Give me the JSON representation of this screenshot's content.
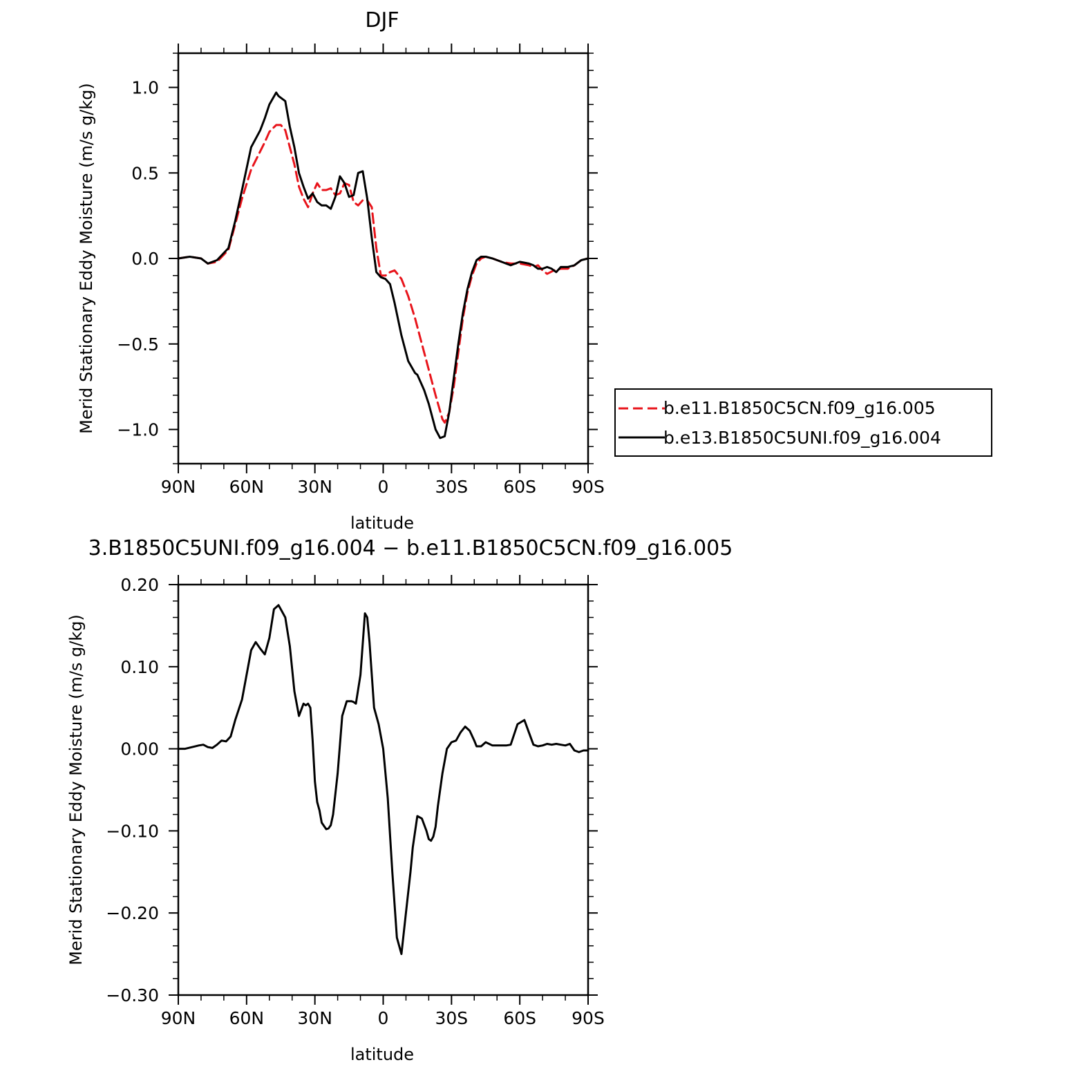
{
  "chart_data": [
    {
      "type": "line",
      "title": "DJF",
      "xlabel": "latitude",
      "ylabel": "Merid Stationary Eddy Moisture (m/s g/kg)",
      "xlim": [
        90,
        -90
      ],
      "ylim": [
        -1.2,
        1.2
      ],
      "x_ticks": [
        90,
        60,
        30,
        0,
        -30,
        -60,
        -90
      ],
      "x_tick_labels": [
        "90N",
        "60N",
        "30N",
        "0",
        "30S",
        "60S",
        "90S"
      ],
      "y_ticks": [
        1.0,
        0.5,
        0.0,
        -0.5,
        -1.0
      ],
      "y_tick_labels": [
        "1.0",
        "0.5",
        "0.0",
        "−0.5",
        "−1.0"
      ],
      "legend_position": "right",
      "series": [
        {
          "name": "b.e11.B1850C5CN.f09_g16.005",
          "color": "#e8141b",
          "dash": "dashed",
          "x": [
            90,
            85,
            80,
            77,
            73,
            68,
            65,
            62,
            58,
            55,
            52,
            50,
            47,
            45,
            43,
            41,
            39,
            37,
            35,
            33,
            31,
            29,
            27,
            25,
            23,
            21,
            19,
            17,
            15,
            13,
            11,
            9,
            7,
            5,
            3,
            1,
            -1,
            -3,
            -5,
            -8,
            -11,
            -14,
            -17,
            -20,
            -23,
            -26,
            -27,
            -29,
            -31,
            -33,
            -35,
            -37,
            -39,
            -41,
            -43,
            -45,
            -48,
            -52,
            -56,
            -60,
            -64,
            -66,
            -68,
            -70,
            -72,
            -75,
            -78,
            -81,
            -84,
            -87,
            -90
          ],
          "values": [
            0.0,
            0.01,
            0.0,
            -0.03,
            -0.02,
            0.05,
            0.2,
            0.35,
            0.52,
            0.6,
            0.68,
            0.74,
            0.78,
            0.78,
            0.75,
            0.65,
            0.55,
            0.42,
            0.35,
            0.3,
            0.38,
            0.44,
            0.4,
            0.4,
            0.41,
            0.37,
            0.38,
            0.44,
            0.43,
            0.33,
            0.31,
            0.34,
            0.34,
            0.3,
            0.06,
            -0.1,
            -0.1,
            -0.08,
            -0.07,
            -0.12,
            -0.22,
            -0.35,
            -0.5,
            -0.65,
            -0.8,
            -0.94,
            -0.96,
            -0.9,
            -0.75,
            -0.55,
            -0.35,
            -0.2,
            -0.1,
            -0.03,
            0.0,
            0.01,
            0.0,
            -0.02,
            -0.03,
            -0.03,
            -0.04,
            -0.05,
            -0.04,
            -0.07,
            -0.09,
            -0.07,
            -0.06,
            -0.06,
            -0.04,
            -0.01,
            0.0
          ]
        },
        {
          "name": "b.e13.B1850C5UNI.f09_g16.004",
          "color": "#000000",
          "dash": "solid",
          "x": [
            90,
            85,
            80,
            77,
            73,
            68,
            65,
            62,
            58,
            56,
            54,
            52,
            50,
            47,
            46,
            45,
            43,
            41,
            39,
            37,
            35,
            33,
            31,
            29,
            27,
            25,
            23,
            21,
            19,
            17,
            15,
            13,
            11,
            9,
            7,
            5,
            3,
            1,
            -1,
            -3,
            -5,
            -8,
            -11,
            -14,
            -15,
            -17,
            -18,
            -20,
            -23,
            -25,
            -27,
            -29,
            -31,
            -33,
            -35,
            -37,
            -39,
            -41,
            -43,
            -45,
            -48,
            -52,
            -56,
            -60,
            -64,
            -66,
            -68,
            -70,
            -72,
            -74,
            -76,
            -78,
            -81,
            -84,
            -87,
            -90
          ],
          "values": [
            0.0,
            0.01,
            0.0,
            -0.03,
            -0.01,
            0.06,
            0.22,
            0.4,
            0.65,
            0.7,
            0.75,
            0.82,
            0.9,
            0.97,
            0.95,
            0.94,
            0.92,
            0.77,
            0.65,
            0.5,
            0.42,
            0.35,
            0.38,
            0.33,
            0.31,
            0.31,
            0.29,
            0.36,
            0.48,
            0.44,
            0.36,
            0.37,
            0.5,
            0.51,
            0.35,
            0.12,
            -0.08,
            -0.11,
            -0.12,
            -0.15,
            -0.26,
            -0.45,
            -0.6,
            -0.67,
            -0.68,
            -0.74,
            -0.77,
            -0.85,
            -1.0,
            -1.05,
            -1.04,
            -0.9,
            -0.7,
            -0.5,
            -0.32,
            -0.18,
            -0.08,
            -0.01,
            0.01,
            0.01,
            0.0,
            -0.02,
            -0.04,
            -0.02,
            -0.03,
            -0.04,
            -0.06,
            -0.06,
            -0.05,
            -0.06,
            -0.08,
            -0.05,
            -0.05,
            -0.04,
            -0.01,
            0.0
          ]
        }
      ]
    },
    {
      "type": "line",
      "title": "3.B1850C5UNI.f09_g16.004 − b.e11.B1850C5CN.f09_g16.005",
      "xlabel": "latitude",
      "ylabel": "Merid Stationary Eddy Moisture (m/s g/kg)",
      "xlim": [
        90,
        -90
      ],
      "ylim": [
        -0.3,
        0.2
      ],
      "x_ticks": [
        90,
        60,
        30,
        0,
        -30,
        -60,
        -90
      ],
      "x_tick_labels": [
        "90N",
        "60N",
        "30N",
        "0",
        "30S",
        "60S",
        "90S"
      ],
      "y_ticks": [
        0.2,
        0.1,
        0.0,
        -0.1,
        -0.2,
        -0.3
      ],
      "y_tick_labels": [
        "0.20",
        "0.10",
        "0.00",
        "−0.10",
        "−0.20",
        "−0.30"
      ],
      "series": [
        {
          "color": "#000000",
          "dash": "solid",
          "x": [
            90,
            87,
            84,
            81,
            79,
            77,
            75,
            73,
            71,
            69,
            67,
            65,
            62,
            60,
            58,
            56,
            54,
            52,
            50,
            48,
            46,
            45,
            43,
            41,
            39,
            37,
            35,
            34,
            33,
            32,
            31,
            30,
            29,
            28,
            27,
            25,
            24,
            23,
            22,
            20,
            18,
            16,
            14,
            13,
            12,
            10,
            8,
            7,
            6,
            5,
            4,
            2,
            0,
            -2,
            -4,
            -6,
            -8,
            -10,
            -12,
            -13,
            -15,
            -17,
            -19,
            -20,
            -21,
            -22,
            -23,
            -24,
            -26,
            -28,
            -30,
            -32,
            -34,
            -36,
            -38,
            -40,
            -41,
            -43,
            -45,
            -48,
            -50,
            -52,
            -54,
            -56,
            -59,
            -62,
            -64,
            -66,
            -68,
            -70,
            -72,
            -74,
            -76,
            -78,
            -80,
            -82,
            -84,
            -86,
            -88,
            -90
          ],
          "values": [
            0.0,
            0.0,
            0.002,
            0.004,
            0.005,
            0.002,
            0.001,
            0.005,
            0.01,
            0.009,
            0.015,
            0.035,
            0.06,
            0.09,
            0.12,
            0.13,
            0.122,
            0.115,
            0.135,
            0.17,
            0.175,
            0.17,
            0.16,
            0.125,
            0.07,
            0.04,
            0.055,
            0.053,
            0.055,
            0.05,
            0.01,
            -0.04,
            -0.065,
            -0.075,
            -0.09,
            -0.098,
            -0.097,
            -0.093,
            -0.08,
            -0.03,
            0.04,
            0.058,
            0.058,
            0.057,
            0.055,
            0.09,
            0.165,
            0.16,
            0.13,
            0.09,
            0.05,
            0.03,
            0.0,
            -0.06,
            -0.15,
            -0.23,
            -0.25,
            -0.2,
            -0.15,
            -0.12,
            -0.082,
            -0.085,
            -0.1,
            -0.11,
            -0.112,
            -0.107,
            -0.095,
            -0.07,
            -0.03,
            0.0,
            0.008,
            0.01,
            0.02,
            0.027,
            0.022,
            0.01,
            0.003,
            0.003,
            0.008,
            0.004,
            0.004,
            0.004,
            0.004,
            0.005,
            0.03,
            0.035,
            0.02,
            0.005,
            0.003,
            0.004,
            0.006,
            0.005,
            0.006,
            0.005,
            0.004,
            0.006,
            -0.002,
            -0.004,
            -0.002,
            -0.002
          ]
        }
      ]
    }
  ]
}
